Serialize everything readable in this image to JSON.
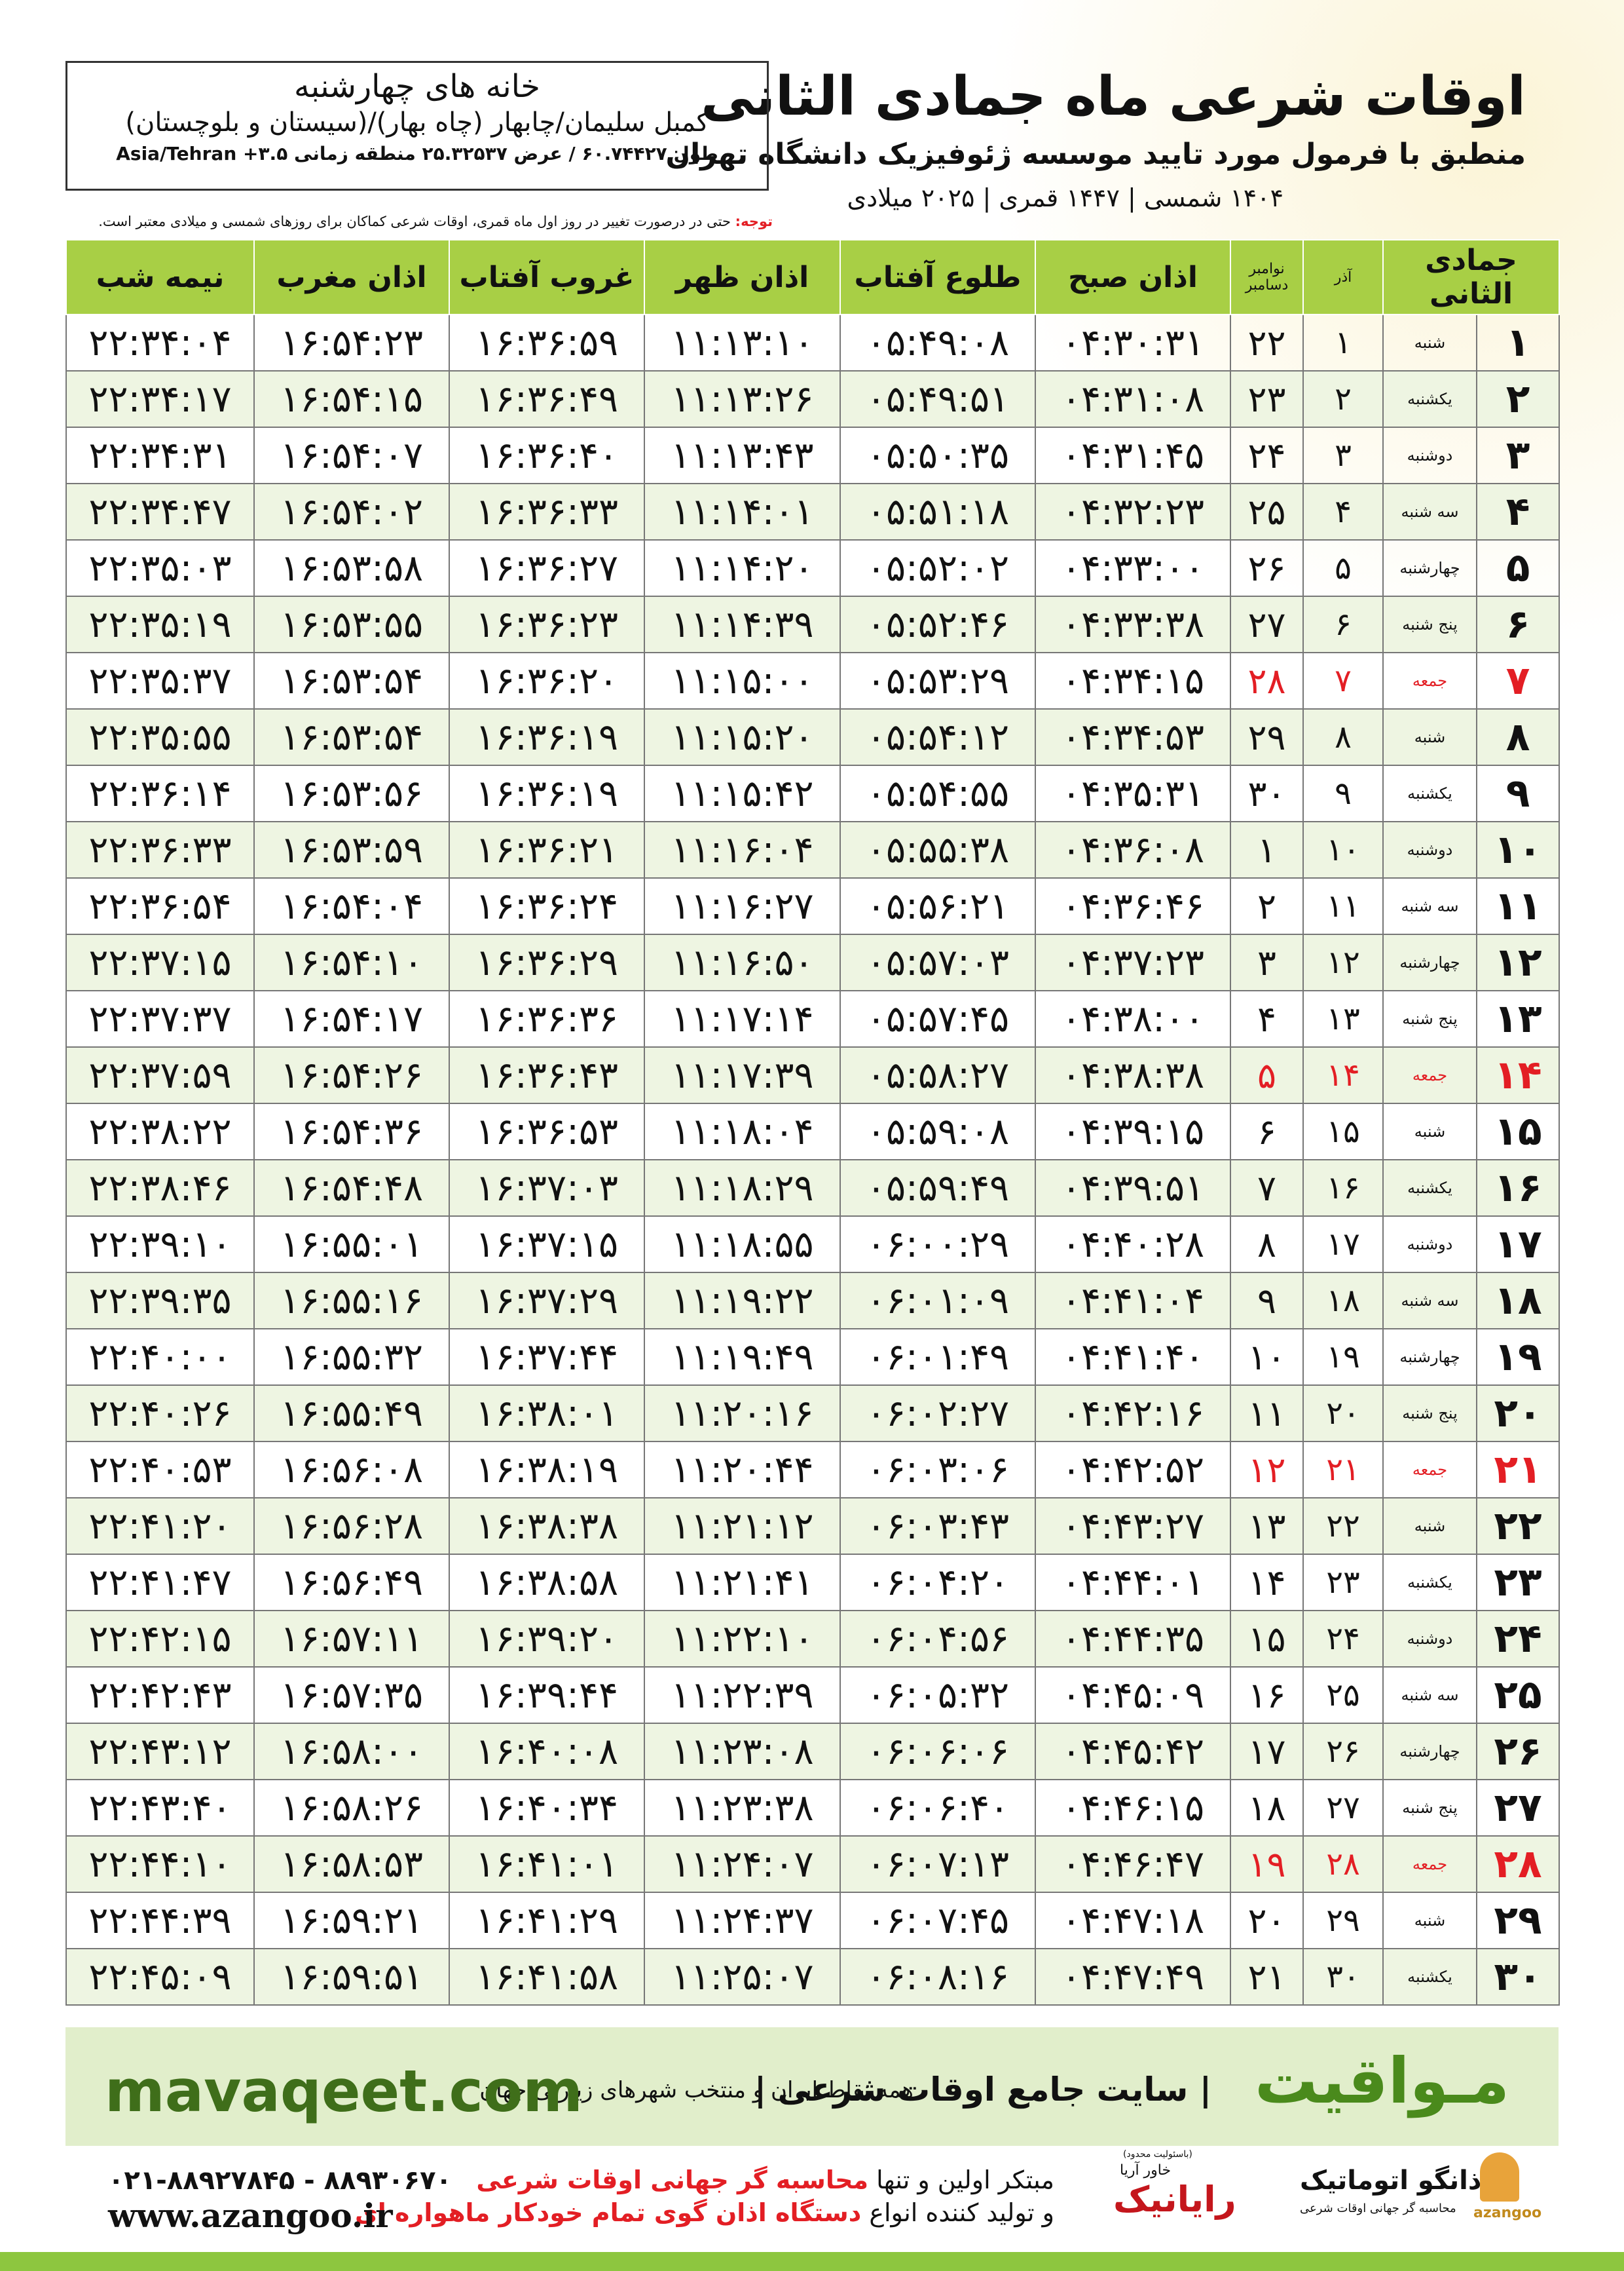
{
  "header": {
    "title": "اوقات شرعی ماه جمادی الثانی",
    "subtitle": "منطبق با فرمول مورد تایید موسسه ژئوفیزیک دانشگاه تهران",
    "dates": "۱۴۰۴ شمسی | ۱۴۴۷ قمری | ۲۰۲۵ میلادی"
  },
  "location": {
    "name": "خانه های چهارشنبه",
    "region": "کمبل سلیمان/چابهار (چاه بهار)/(سیستان و بلوچستان)",
    "coords": "طول ۶۰.۷۴۴۲۷ / عرض ۲۵.۳۲۵۳۷ منطقه زمانی ۳.۵+ Asia/Tehran"
  },
  "note": {
    "label": "توجه:",
    "text": "حتی در درصورت تغییر در روز اول ماه قمری، اوقات شرعی کماکان برای روزهای شمسی و میلادی معتبر است."
  },
  "table": {
    "holiday_color": "#e31e24",
    "columns": [
      "جمادی الثانی",
      "",
      "آذر",
      "نوامبر دسامبر",
      "اذان صبح",
      "طلوع آفتاب",
      "اذان ظهر",
      "غروب آفتاب",
      "اذان مغرب",
      "نیمه شب"
    ],
    "rows": [
      {
        "cells": [
          "۱",
          "شنبه",
          "۱",
          "۲۲",
          "۰۴:۳۰:۳۱",
          "۰۵:۴۹:۰۸",
          "۱۱:۱۳:۱۰",
          "۱۶:۳۶:۵۹",
          "۱۶:۵۴:۲۳",
          "۲۲:۳۴:۰۴"
        ]
      },
      {
        "cells": [
          "۲",
          "یکشنبه",
          "۲",
          "۲۳",
          "۰۴:۳۱:۰۸",
          "۰۵:۴۹:۵۱",
          "۱۱:۱۳:۲۶",
          "۱۶:۳۶:۴۹",
          "۱۶:۵۴:۱۵",
          "۲۲:۳۴:۱۷"
        ]
      },
      {
        "cells": [
          "۳",
          "دوشنبه",
          "۳",
          "۲۴",
          "۰۴:۳۱:۴۵",
          "۰۵:۵۰:۳۵",
          "۱۱:۱۳:۴۳",
          "۱۶:۳۶:۴۰",
          "۱۶:۵۴:۰۷",
          "۲۲:۳۴:۳۱"
        ]
      },
      {
        "cells": [
          "۴",
          "سه شنبه",
          "۴",
          "۲۵",
          "۰۴:۳۲:۲۳",
          "۰۵:۵۱:۱۸",
          "۱۱:۱۴:۰۱",
          "۱۶:۳۶:۳۳",
          "۱۶:۵۴:۰۲",
          "۲۲:۳۴:۴۷"
        ]
      },
      {
        "cells": [
          "۵",
          "چهارشنبه",
          "۵",
          "۲۶",
          "۰۴:۳۳:۰۰",
          "۰۵:۵۲:۰۲",
          "۱۱:۱۴:۲۰",
          "۱۶:۳۶:۲۷",
          "۱۶:۵۳:۵۸",
          "۲۲:۳۵:۰۳"
        ]
      },
      {
        "cells": [
          "۶",
          "پنج شنبه",
          "۶",
          "۲۷",
          "۰۴:۳۳:۳۸",
          "۰۵:۵۲:۴۶",
          "۱۱:۱۴:۳۹",
          "۱۶:۳۶:۲۳",
          "۱۶:۵۳:۵۵",
          "۲۲:۳۵:۱۹"
        ]
      },
      {
        "cells": [
          "۷",
          "جمعه",
          "۷",
          "۲۸",
          "۰۴:۳۴:۱۵",
          "۰۵:۵۳:۲۹",
          "۱۱:۱۵:۰۰",
          "۱۶:۳۶:۲۰",
          "۱۶:۵۳:۵۴",
          "۲۲:۳۵:۳۷"
        ],
        "holiday": true
      },
      {
        "cells": [
          "۸",
          "شنبه",
          "۸",
          "۲۹",
          "۰۴:۳۴:۵۳",
          "۰۵:۵۴:۱۲",
          "۱۱:۱۵:۲۰",
          "۱۶:۳۶:۱۹",
          "۱۶:۵۳:۵۴",
          "۲۲:۳۵:۵۵"
        ]
      },
      {
        "cells": [
          "۹",
          "یکشنبه",
          "۹",
          "۳۰",
          "۰۴:۳۵:۳۱",
          "۰۵:۵۴:۵۵",
          "۱۱:۱۵:۴۲",
          "۱۶:۳۶:۱۹",
          "۱۶:۵۳:۵۶",
          "۲۲:۳۶:۱۴"
        ]
      },
      {
        "cells": [
          "۱۰",
          "دوشنبه",
          "۱۰",
          "۱",
          "۰۴:۳۶:۰۸",
          "۰۵:۵۵:۳۸",
          "۱۱:۱۶:۰۴",
          "۱۶:۳۶:۲۱",
          "۱۶:۵۳:۵۹",
          "۲۲:۳۶:۳۳"
        ]
      },
      {
        "cells": [
          "۱۱",
          "سه شنبه",
          "۱۱",
          "۲",
          "۰۴:۳۶:۴۶",
          "۰۵:۵۶:۲۱",
          "۱۱:۱۶:۲۷",
          "۱۶:۳۶:۲۴",
          "۱۶:۵۴:۰۴",
          "۲۲:۳۶:۵۴"
        ]
      },
      {
        "cells": [
          "۱۲",
          "چهارشنبه",
          "۱۲",
          "۳",
          "۰۴:۳۷:۲۳",
          "۰۵:۵۷:۰۳",
          "۱۱:۱۶:۵۰",
          "۱۶:۳۶:۲۹",
          "۱۶:۵۴:۱۰",
          "۲۲:۳۷:۱۵"
        ]
      },
      {
        "cells": [
          "۱۳",
          "پنج شنبه",
          "۱۳",
          "۴",
          "۰۴:۳۸:۰۰",
          "۰۵:۵۷:۴۵",
          "۱۱:۱۷:۱۴",
          "۱۶:۳۶:۳۶",
          "۱۶:۵۴:۱۷",
          "۲۲:۳۷:۳۷"
        ]
      },
      {
        "cells": [
          "۱۴",
          "جمعه",
          "۱۴",
          "۵",
          "۰۴:۳۸:۳۸",
          "۰۵:۵۸:۲۷",
          "۱۱:۱۷:۳۹",
          "۱۶:۳۶:۴۳",
          "۱۶:۵۴:۲۶",
          "۲۲:۳۷:۵۹"
        ],
        "holiday": true
      },
      {
        "cells": [
          "۱۵",
          "شنبه",
          "۱۵",
          "۶",
          "۰۴:۳۹:۱۵",
          "۰۵:۵۹:۰۸",
          "۱۱:۱۸:۰۴",
          "۱۶:۳۶:۵۳",
          "۱۶:۵۴:۳۶",
          "۲۲:۳۸:۲۲"
        ]
      },
      {
        "cells": [
          "۱۶",
          "یکشنبه",
          "۱۶",
          "۷",
          "۰۴:۳۹:۵۱",
          "۰۵:۵۹:۴۹",
          "۱۱:۱۸:۲۹",
          "۱۶:۳۷:۰۳",
          "۱۶:۵۴:۴۸",
          "۲۲:۳۸:۴۶"
        ]
      },
      {
        "cells": [
          "۱۷",
          "دوشنبه",
          "۱۷",
          "۸",
          "۰۴:۴۰:۲۸",
          "۰۶:۰۰:۲۹",
          "۱۱:۱۸:۵۵",
          "۱۶:۳۷:۱۵",
          "۱۶:۵۵:۰۱",
          "۲۲:۳۹:۱۰"
        ]
      },
      {
        "cells": [
          "۱۸",
          "سه شنبه",
          "۱۸",
          "۹",
          "۰۴:۴۱:۰۴",
          "۰۶:۰۱:۰۹",
          "۱۱:۱۹:۲۲",
          "۱۶:۳۷:۲۹",
          "۱۶:۵۵:۱۶",
          "۲۲:۳۹:۳۵"
        ]
      },
      {
        "cells": [
          "۱۹",
          "چهارشنبه",
          "۱۹",
          "۱۰",
          "۰۴:۴۱:۴۰",
          "۰۶:۰۱:۴۹",
          "۱۱:۱۹:۴۹",
          "۱۶:۳۷:۴۴",
          "۱۶:۵۵:۳۲",
          "۲۲:۴۰:۰۰"
        ]
      },
      {
        "cells": [
          "۲۰",
          "پنج شنبه",
          "۲۰",
          "۱۱",
          "۰۴:۴۲:۱۶",
          "۰۶:۰۲:۲۷",
          "۱۱:۲۰:۱۶",
          "۱۶:۳۸:۰۱",
          "۱۶:۵۵:۴۹",
          "۲۲:۴۰:۲۶"
        ]
      },
      {
        "cells": [
          "۲۱",
          "جمعه",
          "۲۱",
          "۱۲",
          "۰۴:۴۲:۵۲",
          "۰۶:۰۳:۰۶",
          "۱۱:۲۰:۴۴",
          "۱۶:۳۸:۱۹",
          "۱۶:۵۶:۰۸",
          "۲۲:۴۰:۵۳"
        ],
        "holiday": true
      },
      {
        "cells": [
          "۲۲",
          "شنبه",
          "۲۲",
          "۱۳",
          "۰۴:۴۳:۲۷",
          "۰۶:۰۳:۴۳",
          "۱۱:۲۱:۱۲",
          "۱۶:۳۸:۳۸",
          "۱۶:۵۶:۲۸",
          "۲۲:۴۱:۲۰"
        ]
      },
      {
        "cells": [
          "۲۳",
          "یکشنبه",
          "۲۳",
          "۱۴",
          "۰۴:۴۴:۰۱",
          "۰۶:۰۴:۲۰",
          "۱۱:۲۱:۴۱",
          "۱۶:۳۸:۵۸",
          "۱۶:۵۶:۴۹",
          "۲۲:۴۱:۴۷"
        ]
      },
      {
        "cells": [
          "۲۴",
          "دوشنبه",
          "۲۴",
          "۱۵",
          "۰۴:۴۴:۳۵",
          "۰۶:۰۴:۵۶",
          "۱۱:۲۲:۱۰",
          "۱۶:۳۹:۲۰",
          "۱۶:۵۷:۱۱",
          "۲۲:۴۲:۱۵"
        ]
      },
      {
        "cells": [
          "۲۵",
          "سه شنبه",
          "۲۵",
          "۱۶",
          "۰۴:۴۵:۰۹",
          "۰۶:۰۵:۳۲",
          "۱۱:۲۲:۳۹",
          "۱۶:۳۹:۴۴",
          "۱۶:۵۷:۳۵",
          "۲۲:۴۲:۴۳"
        ]
      },
      {
        "cells": [
          "۲۶",
          "چهارشنبه",
          "۲۶",
          "۱۷",
          "۰۴:۴۵:۴۲",
          "۰۶:۰۶:۰۶",
          "۱۱:۲۳:۰۸",
          "۱۶:۴۰:۰۸",
          "۱۶:۵۸:۰۰",
          "۲۲:۴۳:۱۲"
        ]
      },
      {
        "cells": [
          "۲۷",
          "پنج شنبه",
          "۲۷",
          "۱۸",
          "۰۴:۴۶:۱۵",
          "۰۶:۰۶:۴۰",
          "۱۱:۲۳:۳۸",
          "۱۶:۴۰:۳۴",
          "۱۶:۵۸:۲۶",
          "۲۲:۴۳:۴۰"
        ]
      },
      {
        "cells": [
          "۲۸",
          "جمعه",
          "۲۸",
          "۱۹",
          "۰۴:۴۶:۴۷",
          "۰۶:۰۷:۱۳",
          "۱۱:۲۴:۰۷",
          "۱۶:۴۱:۰۱",
          "۱۶:۵۸:۵۳",
          "۲۲:۴۴:۱۰"
        ],
        "holiday": true
      },
      {
        "cells": [
          "۲۹",
          "شنبه",
          "۲۹",
          "۲۰",
          "۰۴:۴۷:۱۸",
          "۰۶:۰۷:۴۵",
          "۱۱:۲۴:۳۷",
          "۱۶:۴۱:۲۹",
          "۱۶:۵۹:۲۱",
          "۲۲:۴۴:۳۹"
        ]
      },
      {
        "cells": [
          "۳۰",
          "یکشنبه",
          "۳۰",
          "۲۱",
          "۰۴:۴۷:۴۹",
          "۰۶:۰۸:۱۶",
          "۱۱:۲۵:۰۷",
          "۱۶:۴۱:۵۸",
          "۱۶:۵۹:۵۱",
          "۲۲:۴۵:۰۹"
        ]
      }
    ]
  },
  "banner": {
    "brand": "مـواقیت",
    "tagline": "| سایت جامع اوقات شرعی |",
    "subline": "همه نقاط ایران و منتخب شهرهای زیارتی جهان",
    "site": "mavaqeet.com"
  },
  "footer": {
    "line1_a": "مبتکر اولین و تنها",
    "line1_b": "محاسبه گر جهانی اوقات شرعی",
    "line2_a": "و تولید کننده انواع",
    "line2_b": "دستگاه اذان گوی تمام خودکار ماهواره ای",
    "phone": "۰۲۱-۸۸۹۲۷۸۴۵ - ۸۸۹۳۰۶۷۰",
    "web": "www.azangoo.ir",
    "logo1": "رایانیک",
    "logo1_sub": "خاور آریا",
    "logo1_note": "(باسئولیت محدود)",
    "logo2": "اذانگو اتوماتیک",
    "logo2_sub": "محاسبه گر جهانی اوقات شرعی",
    "logo3": "azangoo"
  }
}
